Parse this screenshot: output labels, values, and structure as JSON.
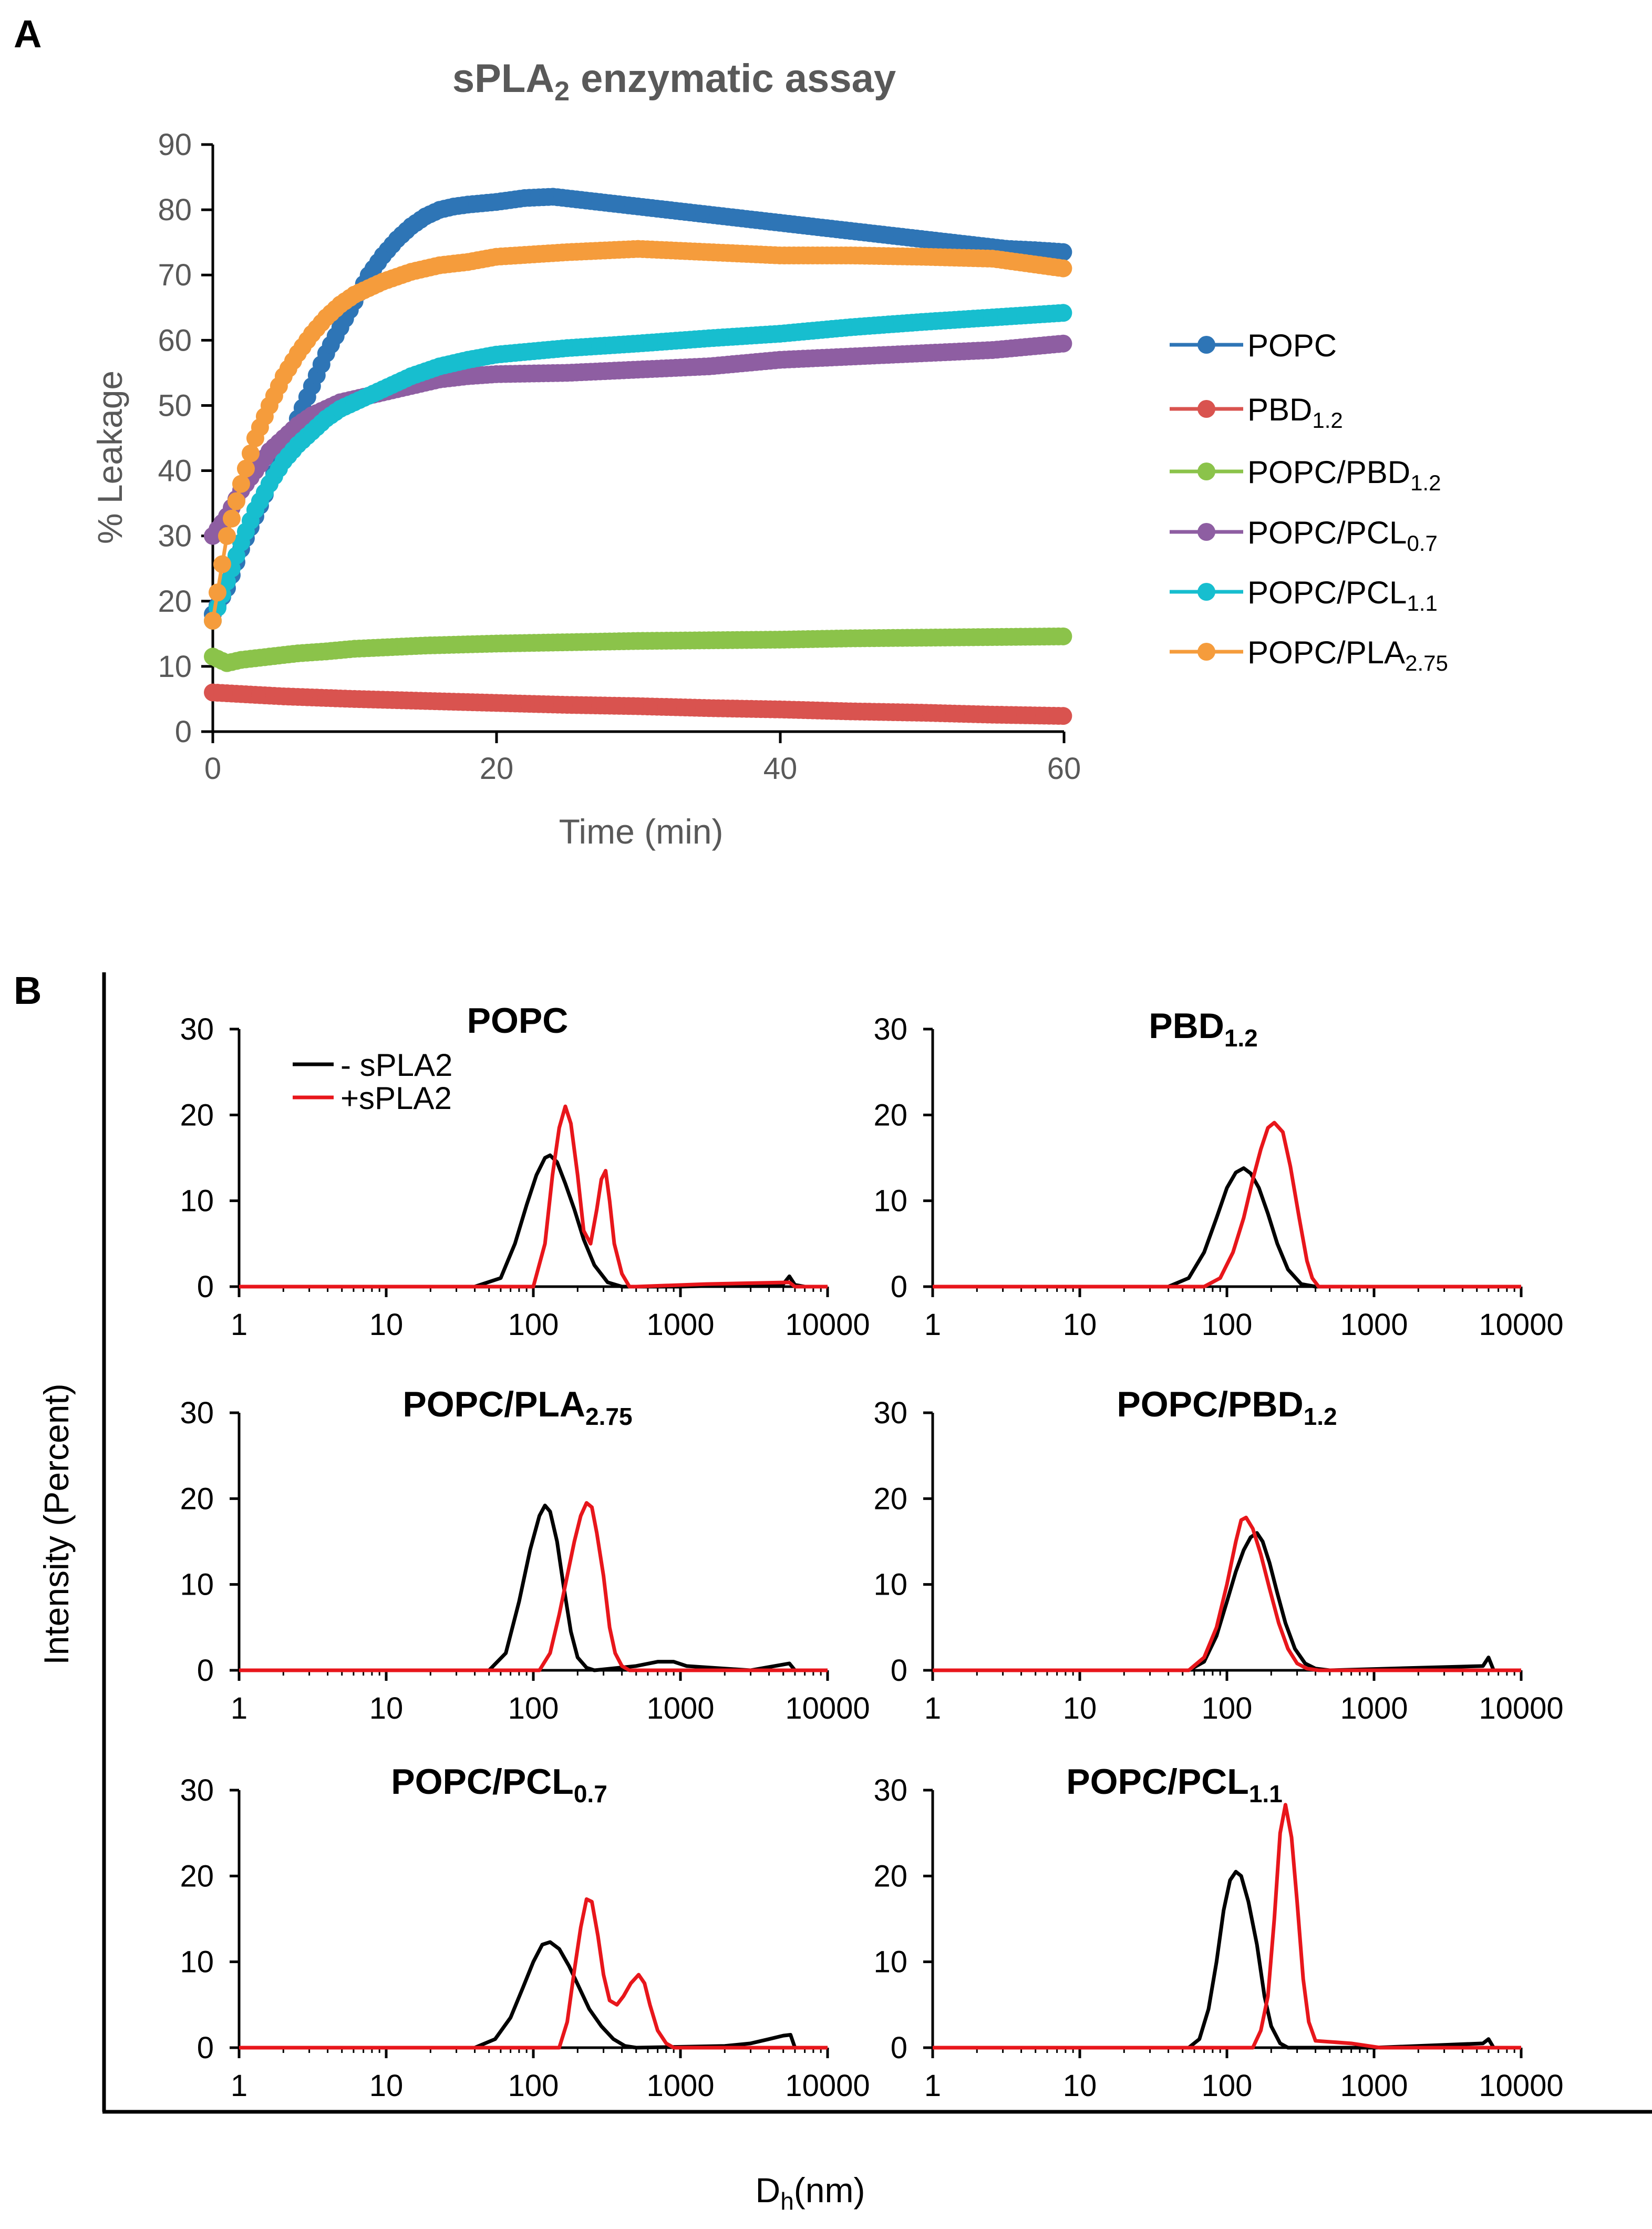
{
  "panel_a": {
    "letter": "A",
    "title_main": "sPLA",
    "title_sub": "2",
    "title_rest": " enzymatic assay",
    "legend": [
      {
        "name": "POPC",
        "sub": ""
      },
      {
        "name": "PBD",
        "sub": "1.2"
      },
      {
        "name": "POPC/PBD",
        "sub": "1.2"
      },
      {
        "name": "POPC/PCL",
        "sub": "0.7"
      },
      {
        "name": "POPC/PCL",
        "sub": "1.1"
      },
      {
        "name": "POPC/PLA",
        "sub": "2.75"
      }
    ]
  },
  "panel_b": {
    "letter": "B",
    "ylabel": "Intensity (Percent)",
    "xlabel_main": "D",
    "xlabel_sub": "h",
    "xlabel_rest": "(nm)",
    "legend": [
      "- sPLA2",
      "+sPLA2"
    ],
    "subplot_titles": [
      {
        "name": "POPC",
        "sub": ""
      },
      {
        "name": "PBD",
        "sub": "1.2"
      },
      {
        "name": "POPC/PLA",
        "sub": "2.75"
      },
      {
        "name": "POPC/PBD",
        "sub": "1.2"
      },
      {
        "name": "POPC/PCL",
        "sub": "0.7"
      },
      {
        "name": "POPC/PCL",
        "sub": "1.1"
      }
    ]
  },
  "colors": {
    "POPC": "#2E75B6",
    "PBD1.2": "#D9534F",
    "POPC/PBD1.2": "#8BC34A",
    "POPC/PCL0.7": "#8E5EA2",
    "POPC/PCL1.1": "#17BECF",
    "POPC/PLA2.75": "#F59C3C",
    "minus": "#000000",
    "plus": "#E8161B",
    "axis_gray": "#595959"
  },
  "chart_data": [
    {
      "type": "scatter",
      "title": "sPLA2 enzymatic assay",
      "xlabel": "Time (min)",
      "ylabel": "% Leakage",
      "xlim": [
        0,
        60
      ],
      "ylim": [
        0,
        90
      ],
      "xticks": [
        0,
        20,
        40,
        60
      ],
      "yticks": [
        0,
        10,
        20,
        30,
        40,
        50,
        60,
        70,
        80,
        90
      ],
      "grid": false,
      "legend_position": "right",
      "series": [
        {
          "name": "POPC",
          "x": [
            0,
            1,
            2,
            3,
            4,
            5,
            6,
            7,
            8,
            9,
            10,
            11,
            12,
            13,
            14,
            15,
            16,
            17,
            18,
            19,
            20,
            22,
            24,
            26,
            28,
            30,
            32,
            34,
            36,
            38,
            40,
            42,
            44,
            46,
            48,
            50,
            52,
            54,
            56,
            58,
            60
          ],
          "y": [
            18,
            22,
            28,
            33,
            38,
            43,
            48,
            53,
            58,
            62,
            66,
            70,
            73,
            75.5,
            77.5,
            79,
            80,
            80.5,
            80.8,
            81,
            81.2,
            81.8,
            82,
            81.5,
            81,
            80.5,
            80,
            79.5,
            79,
            78.5,
            78,
            77.5,
            77,
            76.5,
            76,
            75.5,
            75,
            74.5,
            74,
            73.8,
            73.5
          ]
        },
        {
          "name": "PBD1.2",
          "x": [
            0,
            5,
            10,
            15,
            20,
            25,
            30,
            35,
            40,
            45,
            50,
            55,
            60
          ],
          "y": [
            6,
            5.4,
            5,
            4.7,
            4.4,
            4.1,
            3.9,
            3.6,
            3.4,
            3.1,
            2.9,
            2.6,
            2.4
          ]
        },
        {
          "name": "POPC/PBD1.2",
          "x": [
            0,
            1,
            2,
            4,
            6,
            8,
            10,
            15,
            20,
            25,
            30,
            35,
            40,
            45,
            50,
            55,
            60
          ],
          "y": [
            11.5,
            10.5,
            11,
            11.5,
            12,
            12.3,
            12.7,
            13.2,
            13.5,
            13.7,
            13.9,
            14,
            14.1,
            14.3,
            14.4,
            14.5,
            14.6
          ]
        },
        {
          "name": "POPC/PCL0.7",
          "x": [
            0,
            1,
            2,
            3,
            4,
            5,
            6,
            7,
            8,
            9,
            10,
            12,
            14,
            16,
            18,
            20,
            25,
            30,
            35,
            40,
            45,
            50,
            55,
            60
          ],
          "y": [
            30,
            33,
            37,
            40,
            43,
            45,
            47,
            48.5,
            49.5,
            50.5,
            51,
            52,
            53,
            54,
            54.5,
            54.8,
            55,
            55.5,
            56,
            57,
            57.5,
            58,
            58.5,
            59.5
          ]
        },
        {
          "name": "POPC/PCL1.1",
          "x": [
            0,
            1,
            2,
            3,
            4,
            5,
            6,
            7,
            8,
            9,
            10,
            12,
            14,
            16,
            18,
            20,
            25,
            30,
            35,
            40,
            45,
            50,
            55,
            60
          ],
          "y": [
            17,
            23,
            29,
            34,
            38,
            41.5,
            44,
            46,
            48,
            49.5,
            50.5,
            52.5,
            54.5,
            56,
            57,
            57.8,
            58.8,
            59.5,
            60.3,
            61,
            62,
            62.8,
            63.5,
            64.2
          ]
        },
        {
          "name": "POPC/PLA2.75",
          "x": [
            0,
            1,
            2,
            3,
            4,
            5,
            6,
            7,
            8,
            9,
            10,
            12,
            14,
            16,
            18,
            20,
            25,
            30,
            35,
            40,
            45,
            50,
            55,
            60
          ],
          "y": [
            17,
            30,
            38,
            45,
            50,
            54.5,
            58,
            61,
            63.5,
            65.5,
            67,
            69,
            70.5,
            71.5,
            72,
            72.8,
            73.5,
            74,
            73.5,
            73,
            73,
            72.8,
            72.5,
            71
          ]
        }
      ]
    },
    {
      "type": "line",
      "title": "POPC",
      "xscale": "log",
      "xlim": [
        1,
        10000
      ],
      "ylim": [
        0,
        30
      ],
      "xticks": [
        "1",
        "10",
        "100",
        "1000",
        "10000"
      ],
      "yticks": [
        "0",
        "10",
        "20",
        "30"
      ],
      "series": [
        {
          "name": "- sPLA2",
          "x": [
            40,
            60,
            75,
            90,
            105,
            120,
            130,
            145,
            165,
            190,
            220,
            260,
            320,
            400,
            500,
            1000,
            5000,
            5500,
            6000,
            7000
          ],
          "y": [
            0,
            1,
            5,
            9.5,
            13,
            15,
            15.3,
            14.5,
            12,
            9,
            5.5,
            2.5,
            0.5,
            0,
            0,
            0,
            0.3,
            1.2,
            0.2,
            0
          ]
        },
        {
          "name": "+sPLA2",
          "x": [
            100,
            120,
            135,
            150,
            165,
            180,
            200,
            220,
            245,
            270,
            290,
            310,
            330,
            355,
            400,
            450,
            500,
            1500,
            5500,
            6000
          ],
          "y": [
            0,
            5,
            13,
            18.5,
            21,
            19,
            13,
            6.5,
            5,
            9,
            12.5,
            13.5,
            10,
            5,
            1.5,
            0,
            0,
            0.3,
            0.5,
            0
          ]
        }
      ]
    },
    {
      "type": "line",
      "title": "PBD1.2",
      "xscale": "log",
      "xlim": [
        1,
        10000
      ],
      "ylim": [
        0,
        30
      ],
      "xticks": [
        "1",
        "10",
        "100",
        "1000",
        "10000"
      ],
      "yticks": [
        "0",
        "10",
        "20",
        "30"
      ],
      "series": [
        {
          "name": "- sPLA2",
          "x": [
            40,
            55,
            70,
            85,
            100,
            115,
            130,
            145,
            165,
            190,
            220,
            260,
            320,
            400
          ],
          "y": [
            0,
            1,
            4,
            8,
            11.5,
            13.3,
            13.8,
            13.2,
            11.5,
            8.5,
            5,
            2,
            0.3,
            0
          ]
        },
        {
          "name": "+sPLA2",
          "x": [
            70,
            90,
            110,
            130,
            150,
            170,
            190,
            210,
            240,
            270,
            310,
            350,
            380,
            420
          ],
          "y": [
            0,
            1,
            4,
            8,
            12.5,
            16,
            18.5,
            19.1,
            18,
            14,
            8,
            3,
            1,
            0
          ]
        }
      ]
    },
    {
      "type": "line",
      "title": "POPC/PLA2.75",
      "xscale": "log",
      "xlim": [
        1,
        10000
      ],
      "ylim": [
        0,
        30
      ],
      "xticks": [
        "1",
        "10",
        "100",
        "1000",
        "10000"
      ],
      "yticks": [
        "0",
        "10",
        "20",
        "30"
      ],
      "series": [
        {
          "name": "- sPLA2",
          "x": [
            50,
            65,
            80,
            95,
            110,
            120,
            130,
            145,
            160,
            180,
            200,
            230,
            260,
            500,
            700,
            900,
            1100,
            3000,
            5500,
            6000
          ],
          "y": [
            0,
            2,
            8,
            14,
            18,
            19.2,
            18.5,
            15,
            10,
            4.5,
            1.5,
            0.3,
            0,
            0.5,
            1,
            1,
            0.5,
            0,
            0.8,
            0
          ]
        },
        {
          "name": "+sPLA2",
          "x": [
            110,
            130,
            150,
            170,
            190,
            210,
            230,
            250,
            270,
            300,
            330,
            360,
            400,
            450
          ],
          "y": [
            0,
            2,
            6.5,
            11,
            15,
            18,
            19.5,
            19,
            16,
            11,
            5,
            2,
            0.5,
            0
          ]
        }
      ]
    },
    {
      "type": "line",
      "title": "POPC/PBD1.2",
      "xscale": "log",
      "xlim": [
        1,
        10000
      ],
      "ylim": [
        0,
        30
      ],
      "xticks": [
        "1",
        "10",
        "100",
        "1000",
        "10000"
      ],
      "yticks": [
        "0",
        "10",
        "20",
        "30"
      ],
      "series": [
        {
          "name": "- sPLA2",
          "x": [
            55,
            70,
            85,
            100,
            115,
            130,
            145,
            160,
            175,
            195,
            220,
            250,
            290,
            340,
            400,
            500,
            5500,
            6000,
            6500
          ],
          "y": [
            0,
            1,
            4,
            8,
            11.5,
            14,
            15.5,
            16,
            15,
            12.5,
            9,
            5.5,
            2.5,
            0.8,
            0.2,
            0,
            0.5,
            1.5,
            0
          ]
        },
        {
          "name": "+sPLA2",
          "x": [
            55,
            70,
            85,
            100,
            115,
            125,
            135,
            150,
            170,
            195,
            225,
            260,
            300,
            350,
            420
          ],
          "y": [
            0,
            1.5,
            5,
            10,
            15,
            17.5,
            17.8,
            16.5,
            13.5,
            9.5,
            5.5,
            2.5,
            0.8,
            0.2,
            0
          ]
        }
      ]
    },
    {
      "type": "line",
      "title": "POPC/PCL0.7",
      "xscale": "log",
      "xlim": [
        1,
        10000
      ],
      "ylim": [
        0,
        30
      ],
      "xticks": [
        "1",
        "10",
        "100",
        "1000",
        "10000"
      ],
      "yticks": [
        "0",
        "10",
        "20",
        "30"
      ],
      "series": [
        {
          "name": "- sPLA2",
          "x": [
            40,
            55,
            70,
            85,
            100,
            115,
            130,
            150,
            175,
            205,
            240,
            290,
            350,
            420,
            500,
            2000,
            3000,
            4000,
            5000,
            5600,
            6000
          ],
          "y": [
            0,
            1,
            3.5,
            7,
            10,
            12,
            12.3,
            11.5,
            9.5,
            7,
            4.5,
            2.5,
            1,
            0.2,
            0,
            0.2,
            0.5,
            1,
            1.4,
            1.5,
            0
          ]
        },
        {
          "name": "+sPLA2",
          "x": [
            150,
            170,
            190,
            210,
            230,
            250,
            275,
            300,
            330,
            370,
            410,
            460,
            520,
            570,
            620,
            700,
            800,
            900
          ],
          "y": [
            0,
            3,
            9,
            14,
            17.3,
            17,
            13,
            8.5,
            5.5,
            5,
            6,
            7.5,
            8.5,
            7.5,
            5,
            2,
            0.5,
            0
          ]
        }
      ]
    },
    {
      "type": "line",
      "title": "POPC/PCL1.1",
      "xscale": "log",
      "xlim": [
        1,
        10000
      ],
      "ylim": [
        0,
        30
      ],
      "xticks": [
        "1",
        "10",
        "100",
        "1000",
        "10000"
      ],
      "yticks": [
        "0",
        "10",
        "20",
        "30"
      ],
      "series": [
        {
          "name": "- sPLA2",
          "x": [
            55,
            65,
            75,
            85,
            95,
            105,
            115,
            125,
            140,
            160,
            180,
            200,
            230,
            260,
            1000,
            5500,
            6000,
            6500
          ],
          "y": [
            0,
            1,
            4.5,
            10,
            16,
            19.5,
            20.5,
            20,
            17,
            12,
            6,
            2.5,
            0.5,
            0,
            0,
            0.5,
            1,
            0
          ]
        },
        {
          "name": "+sPLA2",
          "x": [
            150,
            170,
            190,
            210,
            230,
            250,
            275,
            300,
            330,
            360,
            400,
            700,
            1100
          ],
          "y": [
            0,
            2,
            6,
            15,
            25,
            28.3,
            24.5,
            17,
            8,
            3,
            0.8,
            0.5,
            0
          ]
        }
      ]
    }
  ]
}
